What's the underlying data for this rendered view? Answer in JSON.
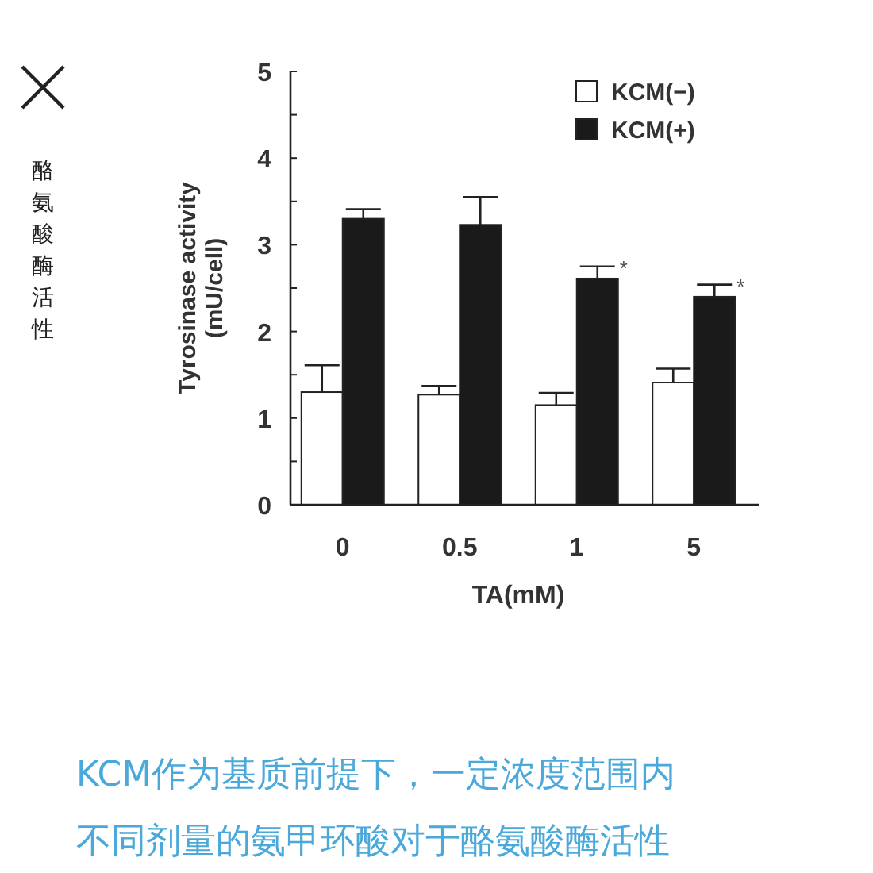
{
  "chart_data": {
    "type": "bar",
    "xlabel": "TA(mM)",
    "ylabel": "Tyrosinase activity\n(mU/cell)",
    "categories": [
      "0",
      "0.5",
      "1",
      "5"
    ],
    "series": [
      {
        "name": "KCM(−)",
        "color": "#ffffff",
        "values": [
          1.3,
          1.27,
          1.15,
          1.41
        ],
        "errors": [
          [
            1.3,
            1.61
          ],
          [
            1.27,
            1.37
          ],
          [
            1.15,
            1.29
          ],
          [
            1.41,
            1.57
          ]
        ]
      },
      {
        "name": "KCM(+)",
        "color": "#1a1a1a",
        "values": [
          3.3,
          3.23,
          2.61,
          2.4
        ],
        "errors": [
          [
            3.3,
            3.41
          ],
          [
            3.23,
            3.55
          ],
          [
            2.61,
            2.75
          ],
          [
            2.4,
            2.54
          ]
        ]
      }
    ],
    "ylim": [
      0,
      5
    ],
    "yticks": [
      0,
      {
        "value": 0.5,
        "label": null
      },
      1,
      {
        "value": 1.5,
        "label": null
      },
      2,
      {
        "value": 2.5,
        "label": null
      },
      3,
      {
        "value": 3.5,
        "label": null
      },
      4,
      {
        "value": 4.5,
        "label": null
      },
      5
    ],
    "grid": false,
    "legend": "top right",
    "annotations": [
      {
        "text": "*",
        "x": "1",
        "y": 2.61
      },
      {
        "text": "*",
        "x": "5",
        "y": 2.4
      },
      "酪氨酸酶活性",
      "KCM作为基质前提下，一定浓度范围内",
      "不同剂量的氨甲环酸对于酪氨酸酶活性"
    ]
  }
}
